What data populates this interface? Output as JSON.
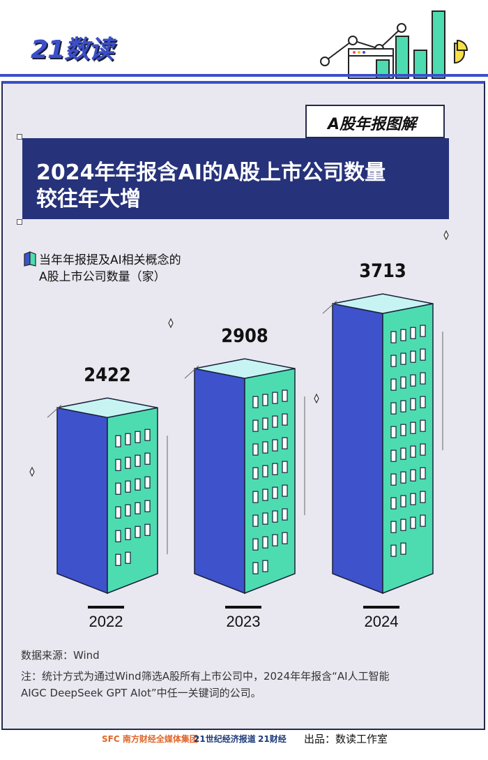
{
  "brand": {
    "logo_text": "21数读"
  },
  "colors": {
    "accent": "#3b4fc9",
    "front": "#3e52cc",
    "side": "#4ddcb0",
    "top": "#c7f4f3",
    "dark": "#26327a"
  },
  "tag": {
    "text": "A股年报图解"
  },
  "title": {
    "line1": "2024年年报含AI的A股上市公司数量",
    "line2": "较往年大增"
  },
  "legend": {
    "line1": "当年年报提及AI相关概念的",
    "line2": "A股上市公司数量（家）"
  },
  "chart_data": {
    "type": "bar",
    "categories": [
      "2022",
      "2023",
      "2024"
    ],
    "values": [
      2422,
      2908,
      3713
    ],
    "title": "2024年年报含AI的A股上市公司数量较往年大增",
    "series": [
      {
        "name": "当年年报提及AI相关概念的A股上市公司数量（家）",
        "values": [
          2422,
          2908,
          3713
        ]
      }
    ]
  },
  "notes": {
    "source": "数据来源：Wind",
    "note_line1": "注：统计方式为通过Wind筛选A股所有上市公司中，2024年年报含“AI人工智能",
    "note_line2": "AIGC DeepSeek GPT AIot”中任一关键词的公司。"
  },
  "footer": {
    "logo1": "SFC 南方财经全媒体集团",
    "logo2": "21世纪经济报道",
    "logo3": "21财经",
    "credit": "出品：数读工作室"
  }
}
